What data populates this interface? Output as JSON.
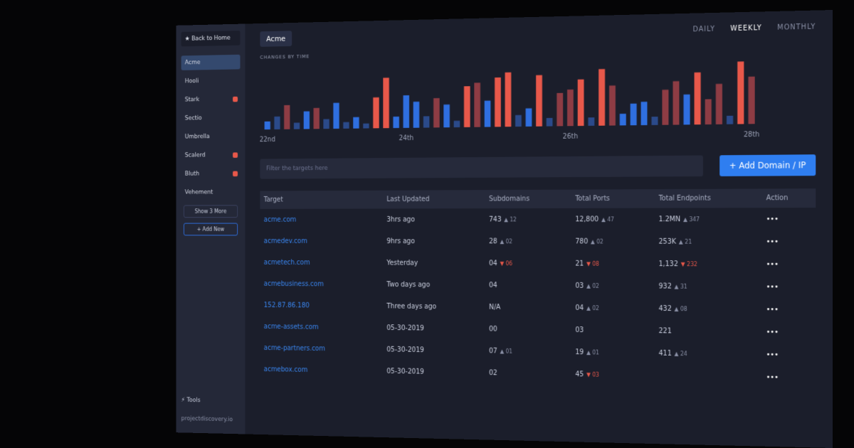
{
  "sidebar": {
    "back": "Back to Home",
    "projects": [
      {
        "name": "Acme",
        "active": true,
        "badge": false
      },
      {
        "name": "Hooli",
        "active": false,
        "badge": false
      },
      {
        "name": "Stark",
        "active": false,
        "badge": true
      },
      {
        "name": "Sectio",
        "active": false,
        "badge": false
      },
      {
        "name": "Umbrella",
        "active": false,
        "badge": false
      },
      {
        "name": "Scalerd",
        "active": false,
        "badge": true
      },
      {
        "name": "Bluth",
        "active": false,
        "badge": true
      },
      {
        "name": "Vehement",
        "active": false,
        "badge": false
      }
    ],
    "show_more": "Show 3 More",
    "add_new": "+ Add New",
    "tools": "Tools",
    "footer": "projectdiscovery.io"
  },
  "header": {
    "project": "Acme",
    "periods": [
      "DAILY",
      "WEEKLY",
      "MONTHLY"
    ],
    "active_period": 1
  },
  "chart_data": {
    "type": "bar",
    "title": "CHANGES BY TIME",
    "categories": [
      "22nd",
      null,
      null,
      null,
      null,
      null,
      null,
      null,
      null,
      null,
      null,
      null,
      null,
      null,
      "24th",
      null,
      null,
      null,
      null,
      null,
      null,
      null,
      null,
      null,
      null,
      null,
      null,
      null,
      null,
      null,
      "26th",
      null,
      null,
      null,
      null,
      null,
      null,
      null,
      null,
      null,
      null,
      null,
      null,
      null,
      null,
      null,
      null,
      "28th"
    ],
    "values": [
      10,
      16,
      30,
      8,
      22,
      26,
      12,
      32,
      8,
      14,
      6,
      38,
      62,
      14,
      40,
      32,
      14,
      36,
      28,
      8,
      50,
      54,
      32,
      60,
      66,
      14,
      22,
      62,
      10,
      40,
      44,
      56,
      10,
      68,
      48,
      14,
      26,
      28,
      10,
      42,
      52,
      36,
      62,
      30,
      48,
      10,
      74,
      56
    ],
    "colors": [
      "#2f6fe0",
      "#2b4a8a",
      "#8e3c44",
      "#2b4a8a",
      "#2f6fe0",
      "#8e3c44",
      "#2b4a8a",
      "#2f6fe0",
      "#2b4a8a",
      "#2f6fe0",
      "#2b4a8a",
      "#e8584a",
      "#e8584a",
      "#2f6fe0",
      "#2f6fe0",
      "#2f6fe0",
      "#2b4a8a",
      "#8e3c44",
      "#2f6fe0",
      "#2b4a8a",
      "#e8584a",
      "#8e3c44",
      "#2f6fe0",
      "#e8584a",
      "#e8584a",
      "#2b4a8a",
      "#2f6fe0",
      "#e8584a",
      "#2b4a8a",
      "#8e3c44",
      "#8e3c44",
      "#e8584a",
      "#2b4a8a",
      "#e8584a",
      "#8e3c44",
      "#2f6fe0",
      "#2f6fe0",
      "#2f6fe0",
      "#2b4a8a",
      "#8e3c44",
      "#8e3c44",
      "#2f6fe0",
      "#e8584a",
      "#8e3c44",
      "#8e3c44",
      "#2b4a8a",
      "#e8584a",
      "#8e3c44"
    ],
    "ylim": [
      0,
      80
    ]
  },
  "toolbar": {
    "search_placeholder": "Filter the targets here",
    "add_button": "+ Add Domain / IP"
  },
  "table": {
    "headers": [
      "Target",
      "Last Updated",
      "Subdomains",
      "Total Ports",
      "Total Endpoints",
      "Action"
    ],
    "action_label": "•••",
    "rows": [
      {
        "target": "acme.com",
        "updated": "3hrs ago",
        "cells": [
          {
            "value": "743",
            "delta": "12",
            "dir": "up"
          },
          {
            "value": "12,800",
            "delta": "47",
            "dir": "up"
          },
          {
            "value": "1.2MN",
            "delta": "347",
            "dir": "up"
          }
        ]
      },
      {
        "target": "acmedev.com",
        "updated": "9hrs ago",
        "cells": [
          {
            "value": "28",
            "delta": "02",
            "dir": "up"
          },
          {
            "value": "780",
            "delta": "02",
            "dir": "up"
          },
          {
            "value": "253K",
            "delta": "21",
            "dir": "up"
          }
        ]
      },
      {
        "target": "acmetech.com",
        "updated": "Yesterday",
        "cells": [
          {
            "value": "04",
            "delta": "06",
            "dir": "down"
          },
          {
            "value": "21",
            "delta": "08",
            "dir": "down"
          },
          {
            "value": "1,132",
            "delta": "232",
            "dir": "down"
          }
        ]
      },
      {
        "target": "acmebusiness.com",
        "updated": "Two days ago",
        "cells": [
          {
            "value": "04"
          },
          {
            "value": "03",
            "delta": "02",
            "dir": "up"
          },
          {
            "value": "932",
            "delta": "31",
            "dir": "up"
          }
        ]
      },
      {
        "target": "152.87.86.180",
        "updated": "Three days ago",
        "cells": [
          {
            "value": "N/A"
          },
          {
            "value": "04",
            "delta": "02",
            "dir": "up"
          },
          {
            "value": "432",
            "delta": "08",
            "dir": "up"
          }
        ]
      },
      {
        "target": "acme-assets.com",
        "updated": "05-30-2019",
        "cells": [
          {
            "value": "00"
          },
          {
            "value": "03"
          },
          {
            "value": "221"
          }
        ]
      },
      {
        "target": "acme-partners.com",
        "updated": "05-30-2019",
        "cells": [
          {
            "value": "07",
            "delta": "01",
            "dir": "up"
          },
          {
            "value": "19",
            "delta": "01",
            "dir": "up"
          },
          {
            "value": "411",
            "delta": "24",
            "dir": "up"
          }
        ]
      },
      {
        "target": "acmebox.com",
        "updated": "05-30-2019",
        "cells": [
          {
            "value": "02"
          },
          {
            "value": "45",
            "delta": "03",
            "dir": "down"
          }
        ]
      }
    ]
  }
}
